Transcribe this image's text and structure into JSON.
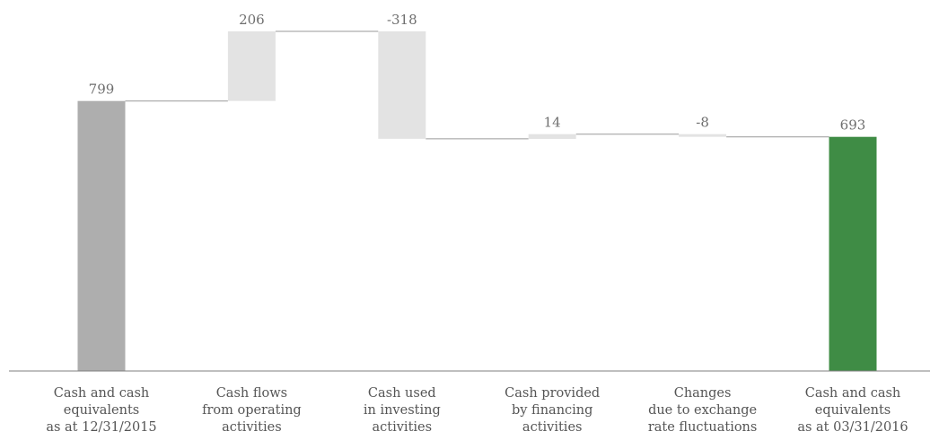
{
  "chart_data": {
    "type": "bar",
    "subtype": "waterfall",
    "title": "",
    "xlabel": "",
    "ylabel": "",
    "ylim": [
      0,
      1005
    ],
    "grid": false,
    "legend": "none",
    "categories": [
      [
        "Cash and cash",
        "equivalents",
        "as at 12/31/2015"
      ],
      [
        "Cash flows",
        "from operating",
        "activities"
      ],
      [
        "Cash used",
        "in investing",
        "activities"
      ],
      [
        "Cash provided",
        "by financing",
        "activities"
      ],
      [
        "Changes",
        "due to exchange",
        "rate fluctuations"
      ],
      [
        "Cash and cash",
        "equivalents",
        "as at 03/31/2016"
      ]
    ],
    "values": [
      799,
      206,
      -318,
      14,
      -8,
      693
    ],
    "value_labels": [
      "799",
      "206",
      "-318",
      "14",
      "-8",
      "693"
    ],
    "bar_kinds": [
      "total",
      "delta",
      "delta",
      "delta",
      "delta",
      "total"
    ],
    "colors": {
      "start_total": "#aeaeae",
      "delta": "#e3e3e3",
      "end_total": "#3f8c45",
      "end_label": "#3f8c45",
      "label": "#6e6e6e",
      "connector": "#9a9a9a",
      "baseline": "#7f7f7f"
    }
  }
}
